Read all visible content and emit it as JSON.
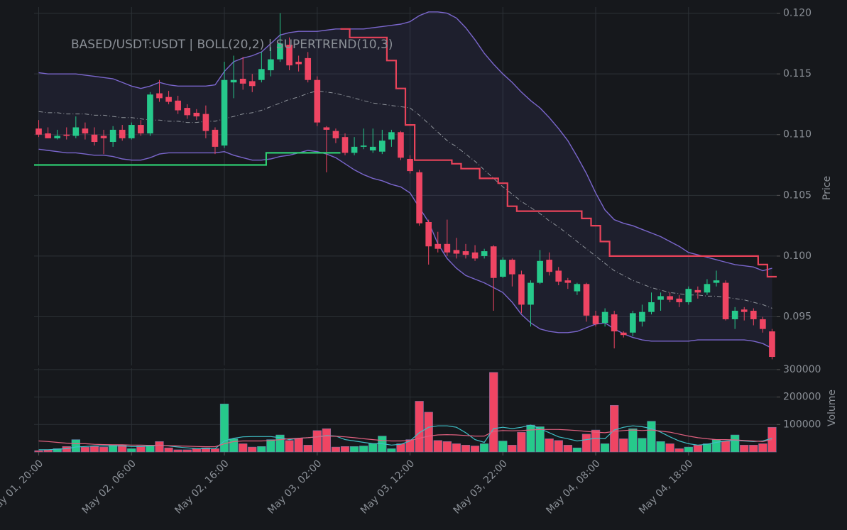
{
  "chart_data": {
    "type": "candlestick",
    "title": "BASED/USDT:USDT | BOLL(20,2) | SUPERTREND(10,3)",
    "y_label": "Price",
    "categories": [
      "May 01, 20:00",
      null,
      null,
      null,
      null,
      null,
      null,
      null,
      null,
      null,
      "May 02, 06:00",
      null,
      null,
      null,
      null,
      null,
      null,
      null,
      null,
      null,
      "May 02, 16:00",
      null,
      null,
      null,
      null,
      null,
      null,
      null,
      null,
      null,
      "May 03, 02:00",
      null,
      null,
      null,
      null,
      null,
      null,
      null,
      null,
      null,
      "May 03, 12:00",
      null,
      null,
      null,
      null,
      null,
      null,
      null,
      null,
      null,
      "May 03, 22:00",
      null,
      null,
      null,
      null,
      null,
      null,
      null,
      null,
      null,
      "May 04, 08:00",
      null,
      null,
      null,
      null,
      null,
      null,
      null,
      null,
      null,
      "May 04, 18:00",
      null,
      null,
      null,
      null,
      null,
      null,
      null,
      null,
      null
    ],
    "open": [
      0.1105,
      0.1101,
      0.1097,
      0.11,
      0.1099,
      0.1105,
      0.11,
      0.1099,
      0.1094,
      0.1104,
      0.1097,
      0.1108,
      0.1101,
      0.1134,
      0.1131,
      0.1128,
      0.1122,
      0.1118,
      0.1117,
      0.1104,
      0.1091,
      0.1143,
      0.1146,
      0.1144,
      0.1145,
      0.1153,
      0.1162,
      0.1174,
      0.116,
      0.1163,
      0.1145,
      0.1106,
      0.1103,
      0.1098,
      0.1085,
      0.109,
      0.1087,
      0.1086,
      0.1096,
      0.1102,
      0.108,
      0.1069,
      0.1028,
      0.101,
      0.101,
      0.1005,
      0.1004,
      0.1003,
      0.1,
      0.1008,
      0.0983,
      0.0997,
      0.0985,
      0.096,
      0.0978,
      0.0997,
      0.0988,
      0.098,
      0.0971,
      0.0977,
      0.0951,
      0.0945,
      0.0952,
      0.0937,
      0.0937,
      0.0946,
      0.0954,
      0.0964,
      0.0967,
      0.0965,
      0.0962,
      0.0972,
      0.097,
      0.0978,
      0.0978,
      0.0948,
      0.0956,
      0.0955,
      0.0948,
      0.0938
    ],
    "high": [
      0.1112,
      0.1106,
      0.1104,
      0.1106,
      0.1115,
      0.111,
      0.1106,
      0.1104,
      0.1107,
      0.1108,
      0.111,
      0.1112,
      0.1135,
      0.1145,
      0.1136,
      0.1132,
      0.1125,
      0.1121,
      0.1124,
      0.1106,
      0.116,
      0.1165,
      0.1164,
      0.115,
      0.1168,
      0.1172,
      0.12,
      0.118,
      0.1165,
      0.1168,
      0.1148,
      0.1107,
      0.1105,
      0.1101,
      0.1098,
      0.1105,
      0.1105,
      0.1104,
      0.1104,
      0.1103,
      0.1083,
      0.1071,
      0.103,
      0.102,
      0.103,
      0.1015,
      0.101,
      0.1009,
      0.1006,
      0.1009,
      0.0999,
      0.0998,
      0.0988,
      0.098,
      0.1005,
      0.1003,
      0.0991,
      0.0982,
      0.0978,
      0.0978,
      0.0955,
      0.0957,
      0.0955,
      0.0938,
      0.0955,
      0.096,
      0.097,
      0.097,
      0.097,
      0.0968,
      0.0975,
      0.0975,
      0.0981,
      0.0988,
      0.098,
      0.0958,
      0.0958,
      0.0957,
      0.095,
      0.094
    ],
    "low": [
      0.1098,
      0.1097,
      0.1096,
      0.1096,
      0.1097,
      0.1096,
      0.1091,
      0.1084,
      0.109,
      0.1095,
      0.1096,
      0.1099,
      0.1099,
      0.1127,
      0.1125,
      0.1117,
      0.1113,
      0.1112,
      0.1097,
      0.1084,
      0.1089,
      0.113,
      0.1137,
      0.1135,
      0.1143,
      0.1148,
      0.116,
      0.1153,
      0.1152,
      0.1143,
      0.1107,
      0.1069,
      0.1093,
      0.1083,
      0.1083,
      0.1088,
      0.1085,
      0.1084,
      0.109,
      0.1079,
      0.1068,
      0.1025,
      0.0993,
      0.1003,
      0.1,
      0.0998,
      0.0998,
      0.0996,
      0.0998,
      0.0955,
      0.0982,
      0.0975,
      0.0953,
      0.0942,
      0.0977,
      0.0984,
      0.0976,
      0.0973,
      0.0968,
      0.0946,
      0.0942,
      0.0942,
      0.0924,
      0.0933,
      0.0934,
      0.0942,
      0.0952,
      0.0955,
      0.0962,
      0.0958,
      0.096,
      0.0965,
      0.0968,
      0.0975,
      0.0947,
      0.094,
      0.0947,
      0.0943,
      0.0937,
      0.0915
    ],
    "close": [
      0.11,
      0.1097,
      0.1099,
      0.1099,
      0.1106,
      0.1101,
      0.1094,
      0.1097,
      0.1104,
      0.1097,
      0.1108,
      0.1101,
      0.1133,
      0.113,
      0.1127,
      0.112,
      0.1116,
      0.1115,
      0.1103,
      0.109,
      0.1145,
      0.1145,
      0.1142,
      0.114,
      0.1154,
      0.1162,
      0.1175,
      0.1157,
      0.1158,
      0.1145,
      0.111,
      0.1104,
      0.1097,
      0.1085,
      0.109,
      0.1091,
      0.109,
      0.1095,
      0.1102,
      0.1081,
      0.107,
      0.1027,
      0.1008,
      0.1006,
      0.1003,
      0.1002,
      0.1001,
      0.0998,
      0.1004,
      0.0982,
      0.0997,
      0.0985,
      0.096,
      0.0978,
      0.0996,
      0.0987,
      0.0979,
      0.0978,
      0.0977,
      0.0951,
      0.0944,
      0.0954,
      0.0938,
      0.0935,
      0.0953,
      0.0954,
      0.0962,
      0.0967,
      0.0964,
      0.0962,
      0.0973,
      0.097,
      0.0977,
      0.098,
      0.0948,
      0.0955,
      0.0954,
      0.0948,
      0.094,
      0.0917
    ],
    "up_color": "#26c98b",
    "down_color": "#ef4563",
    "ylim": [
      0.091,
      0.1205
    ],
    "yticks": [
      0.095,
      {
        "value": 0.1,
        "label": "0.100"
      },
      0.105,
      {
        "value": 0.11,
        "label": "0.110"
      },
      0.115,
      {
        "value": 0.12,
        "label": "0.120"
      }
    ],
    "grid": true,
    "band": {
      "color": "#7a66cc",
      "fill": "rgba(110,100,200,0.10)",
      "upper": [
        0.1151,
        0.115,
        0.115,
        0.115,
        0.115,
        0.1149,
        0.1148,
        0.1147,
        0.1146,
        0.1143,
        0.114,
        0.1138,
        0.114,
        0.1143,
        0.1141,
        0.114,
        0.114,
        0.114,
        0.114,
        0.1141,
        0.1152,
        0.116,
        0.1163,
        0.1165,
        0.1168,
        0.1175,
        0.1182,
        0.1184,
        0.1185,
        0.1185,
        0.1185,
        0.1186,
        0.1187,
        0.1187,
        0.1187,
        0.1187,
        0.1188,
        0.1189,
        0.119,
        0.1191,
        0.1193,
        0.1198,
        0.1201,
        0.1201,
        0.12,
        0.1196,
        0.1188,
        0.1178,
        0.1167,
        0.1158,
        0.115,
        0.1143,
        0.1135,
        0.1128,
        0.1122,
        0.1114,
        0.1105,
        0.1095,
        0.1082,
        0.1068,
        0.1052,
        0.1038,
        0.103,
        0.1027,
        0.1025,
        0.1022,
        0.1019,
        0.1016,
        0.1012,
        0.1008,
        0.1003,
        0.1001,
        0.0999,
        0.0997,
        0.0995,
        0.0993,
        0.0992,
        0.0991,
        0.0988,
        0.099
      ],
      "middle": [
        0.1119,
        0.1118,
        0.1118,
        0.1117,
        0.1117,
        0.1117,
        0.1116,
        0.1116,
        0.1115,
        0.1114,
        0.1114,
        0.1113,
        0.1112,
        0.1112,
        0.1111,
        0.1111,
        0.111,
        0.111,
        0.1111,
        0.1111,
        0.1113,
        0.1115,
        0.1117,
        0.1118,
        0.112,
        0.1123,
        0.1126,
        0.1129,
        0.1131,
        0.1134,
        0.1136,
        0.1135,
        0.1134,
        0.1132,
        0.113,
        0.1128,
        0.1126,
        0.1125,
        0.1124,
        0.1123,
        0.1122,
        0.1116,
        0.1109,
        0.1102,
        0.1095,
        0.109,
        0.1084,
        0.1078,
        0.1071,
        0.1064,
        0.1057,
        0.1051,
        0.1045,
        0.104,
        0.1035,
        0.1029,
        0.1024,
        0.1018,
        0.1012,
        0.1006,
        0.1,
        0.0994,
        0.0988,
        0.0984,
        0.098,
        0.0977,
        0.0974,
        0.0972,
        0.097,
        0.0969,
        0.0968,
        0.0968,
        0.0967,
        0.0967,
        0.0966,
        0.0965,
        0.0964,
        0.0962,
        0.096,
        0.0957
      ],
      "middle_color": "#8e939a",
      "lower": [
        0.1088,
        0.1087,
        0.1086,
        0.1085,
        0.1085,
        0.1084,
        0.1083,
        0.1083,
        0.1082,
        0.108,
        0.1079,
        0.1079,
        0.1081,
        0.1084,
        0.1085,
        0.1085,
        0.1085,
        0.1085,
        0.1085,
        0.1085,
        0.1086,
        0.1083,
        0.1081,
        0.1079,
        0.1079,
        0.108,
        0.1082,
        0.1083,
        0.1085,
        0.1087,
        0.1086,
        0.1084,
        0.1081,
        0.1076,
        0.1071,
        0.1067,
        0.1064,
        0.1062,
        0.1059,
        0.1057,
        0.1052,
        0.104,
        0.1028,
        0.101,
        0.0998,
        0.099,
        0.0984,
        0.0981,
        0.0978,
        0.0974,
        0.097,
        0.0962,
        0.0952,
        0.0945,
        0.094,
        0.0938,
        0.0937,
        0.0937,
        0.0938,
        0.0941,
        0.0944,
        0.0945,
        0.094,
        0.0936,
        0.0933,
        0.0931,
        0.093,
        0.093,
        0.093,
        0.093,
        0.093,
        0.0931,
        0.0931,
        0.0931,
        0.0931,
        0.0931,
        0.0931,
        0.093,
        0.0928,
        0.0924
      ]
    },
    "steps": [
      {
        "color": "#2ecc71",
        "values": [
          0.1075,
          0.1075,
          0.1075,
          0.1075,
          0.1075,
          0.1075,
          0.1075,
          0.1075,
          0.1075,
          0.1075,
          0.1075,
          0.1075,
          0.1075,
          0.1075,
          0.1075,
          0.1075,
          0.1075,
          0.1075,
          0.1075,
          0.1075,
          0.1075,
          0.1075,
          0.1075,
          0.1075,
          0.1075,
          0.1085,
          0.1085,
          0.1085,
          0.1085,
          0.1085,
          0.1085,
          0.1085,
          0.1085,
          null,
          null,
          null,
          null,
          null,
          null,
          null,
          null,
          null,
          null,
          null,
          null,
          null,
          null,
          null,
          null,
          null,
          null,
          null,
          null,
          null,
          null,
          null,
          null,
          null,
          null,
          null,
          null,
          null,
          null,
          null,
          null,
          null,
          null,
          null,
          null,
          null,
          null,
          null,
          null,
          null,
          null,
          null,
          null,
          null,
          null,
          null
        ]
      },
      {
        "color": "#e8435a",
        "values": [
          null,
          null,
          null,
          null,
          null,
          null,
          null,
          null,
          null,
          null,
          null,
          null,
          null,
          null,
          null,
          null,
          null,
          null,
          null,
          null,
          null,
          null,
          null,
          null,
          null,
          null,
          null,
          null,
          null,
          null,
          null,
          null,
          null,
          0.1187,
          0.118,
          0.118,
          0.118,
          0.118,
          0.1161,
          0.1138,
          0.1108,
          0.1079,
          0.1079,
          0.1079,
          0.1079,
          0.1076,
          0.1072,
          0.1072,
          0.1064,
          0.1064,
          0.106,
          0.1041,
          0.1037,
          0.1037,
          0.1037,
          0.1037,
          0.1037,
          0.1037,
          0.1037,
          0.1031,
          0.1025,
          0.1012,
          0.1,
          0.1,
          0.1,
          0.1,
          0.1,
          0.1,
          0.1,
          0.1,
          0.1,
          0.1,
          0.1,
          0.1,
          0.1,
          0.1,
          0.1,
          0.1,
          0.0993,
          0.0983
        ]
      }
    ],
    "volume": {
      "label": "Volume",
      "values": [
        5000,
        8000,
        12000,
        20000,
        45000,
        18000,
        20000,
        18000,
        25000,
        25000,
        12000,
        22000,
        25000,
        38000,
        15000,
        8000,
        8000,
        12000,
        15000,
        12000,
        175000,
        48000,
        30000,
        18000,
        20000,
        45000,
        62000,
        42000,
        50000,
        25000,
        78000,
        85000,
        18000,
        20000,
        20000,
        22000,
        30000,
        58000,
        12000,
        30000,
        45000,
        185000,
        145000,
        42000,
        38000,
        30000,
        25000,
        22000,
        30000,
        290000,
        40000,
        25000,
        72000,
        98000,
        92000,
        48000,
        42000,
        25000,
        15000,
        65000,
        80000,
        30000,
        170000,
        48000,
        85000,
        50000,
        112000,
        38000,
        30000,
        12000,
        18000,
        25000,
        30000,
        45000,
        40000,
        62000,
        25000,
        25000,
        30000,
        90000
      ],
      "ylim": [
        0,
        305000
      ],
      "yticks": [
        100000,
        200000,
        300000
      ],
      "lines": [
        {
          "color": "#3fbfc6",
          "values": [
            8000,
            8000,
            10000,
            12000,
            18000,
            20000,
            22000,
            22000,
            22000,
            22000,
            20000,
            20000,
            22000,
            25000,
            22000,
            18000,
            15000,
            12000,
            12000,
            12000,
            40000,
            50000,
            55000,
            56000,
            56000,
            56000,
            52000,
            45000,
            50000,
            52000,
            55000,
            60000,
            58000,
            45000,
            40000,
            35000,
            30000,
            30000,
            25000,
            28000,
            40000,
            70000,
            90000,
            95000,
            95000,
            90000,
            70000,
            45000,
            35000,
            85000,
            90000,
            85000,
            90000,
            98000,
            85000,
            70000,
            55000,
            48000,
            40000,
            45000,
            50000,
            48000,
            80000,
            90000,
            95000,
            92000,
            85000,
            72000,
            55000,
            40000,
            30000,
            25000,
            28000,
            35000,
            40000,
            42000,
            40000,
            38000,
            40000,
            50000
          ]
        },
        {
          "color": "#e0607f",
          "values": [
            40000,
            38000,
            35000,
            32000,
            30000,
            30000,
            28000,
            27000,
            26000,
            26000,
            25000,
            25000,
            24000,
            24000,
            23000,
            22000,
            21000,
            20000,
            19000,
            19000,
            30000,
            38000,
            40000,
            40000,
            40000,
            42000,
            45000,
            48000,
            50000,
            52000,
            55000,
            58000,
            57000,
            55000,
            52000,
            48000,
            45000,
            42000,
            40000,
            40000,
            42000,
            50000,
            58000,
            62000,
            63000,
            62000,
            60000,
            58000,
            58000,
            75000,
            78000,
            77000,
            78000,
            80000,
            82000,
            82000,
            82000,
            80000,
            78000,
            75000,
            72000,
            70000,
            75000,
            78000,
            80000,
            78000,
            80000,
            76000,
            72000,
            65000,
            58000,
            52000,
            48000,
            45000,
            45000,
            44000,
            42000,
            40000,
            38000,
            45000
          ]
        }
      ]
    }
  }
}
